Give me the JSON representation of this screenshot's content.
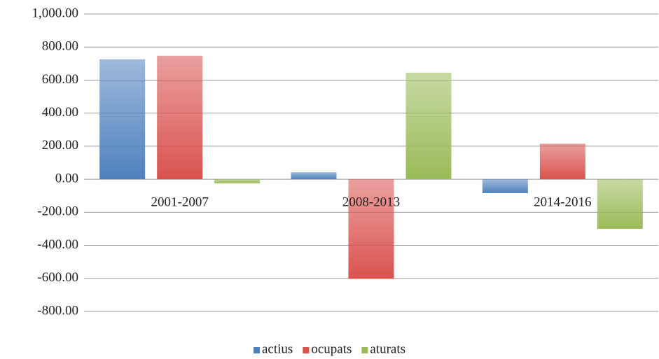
{
  "chart_data": {
    "type": "bar",
    "categories": [
      "2001-2007",
      "2008-2013",
      "2014-2016"
    ],
    "series": [
      {
        "name": "actius",
        "color": "#4f81bd",
        "values": [
          726,
          42,
          -84
        ]
      },
      {
        "name": "ocupats",
        "color": "#d9534f",
        "values": [
          747,
          -603,
          215
        ]
      },
      {
        "name": "aturats",
        "color": "#9bbb59",
        "values": [
          -25,
          645,
          -300
        ]
      }
    ],
    "ylim": [
      -800,
      1000
    ],
    "yticks": [
      {
        "value": -800,
        "label": "-800.00"
      },
      {
        "value": -600,
        "label": "-600.00"
      },
      {
        "value": -400,
        "label": "-400.00"
      },
      {
        "value": -200,
        "label": "-200.00"
      },
      {
        "value": 0,
        "label": "0.00"
      },
      {
        "value": 200,
        "label": "200.00"
      },
      {
        "value": 400,
        "label": "400.00"
      },
      {
        "value": 600,
        "label": "600.00"
      },
      {
        "value": 800,
        "label": "800.00"
      },
      {
        "value": 1000,
        "label": "1,000.00"
      }
    ],
    "grid": true,
    "legend": "bottom"
  }
}
